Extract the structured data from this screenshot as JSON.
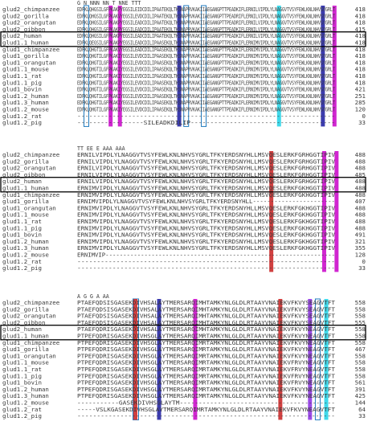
{
  "colors": {
    "text": "#3a3a3a",
    "magenta": "#c800c8",
    "cyan": "#1ed2e6",
    "navy": "#1a1aa0",
    "red": "#c81e1e",
    "violet": "#8a2be2",
    "box_outline": "#1e78be",
    "highlight_box": "#000000"
  },
  "blocks": [
    {
      "annotation": "G N                                         NNN NN                  T NNE   TTT",
      "rows": [
        {
          "name": "glud2_chimpanzee",
          "seq": "EDFKLQHGSILGFPKAKPYEGSILEIDCDILIPAATEKQLTKSNAPRVKAKIIAEGANGPTTPEADKIFLERNILVIPDLYLNAGGVTVSYFEWLKNLNHVSYGRLT",
          "num": "418"
        },
        {
          "name": "glud2_gorilla",
          "seq": "EDFKLQHGSILGFPKAKVYEGSILEVDCDILIPAATEKQLTKSNAPRVKAKIIAEGANGPTTPEADRIFLERNILVIPDLYLNAGGVTVSYFEWLKNLNHVSYGRLT",
          "num": "418"
        },
        {
          "name": "glud2_orangutan",
          "seq": "EDFKLQHGSILGFPKAKPYEGSILEADCDILIPAATEKQLTKSNAPRVKAKIIAEGANGPTTPEADRIFLERNILVIPDLYLNAGGVTVSYFEWLKNLNHVSYGRLT",
          "num": "418"
        },
        {
          "name": "glud2_gibbon",
          "seq": "EDFKLQHGSILGFPKAKPYEGSILEADCDILIPAATEKQLTKSNAPRVKAKIIAEGANGPTTPEADKIFLERNILVIPDLYLNAGGVTVSYFEWLKNLNHVSYGRLT",
          "num": "415"
        },
        {
          "name": "glud2_human",
          "seq": "EDFKLQHGSILGFPKAKPYEGSILEADCDILIPAATEKQLTKSNAPRVKAKIIAEGANGPTTPEADKIFLERNILVIPDLYLNAGGVTVSYFEWLKNLNHVSYGRLT",
          "num": "418",
          "boxed": true
        },
        {
          "name": "glud1.1_human",
          "seq": "EDFKLQEGSILGFPKAKPYEGSILEADCDILIPAASEKQLTKSNAPRVKAKIIAEGANGPTTPEADKIFLERNIMVIPDLYLNAGGVTVSYFEWLKNLNHVSYGRLT",
          "num": "418",
          "boxed": true
        },
        {
          "name": "glud1_chimpanzee",
          "seq": "EDFKLQHGTILGFPKAKVYEGSILEADCDILIPAASEKQLTKSNAPRVKAKIIAEGANGPTTPEADKIFLERNIMVIPDLYLNAGGVTVSYFEWLKNLNHVSYGRLT",
          "num": "418"
        },
        {
          "name": "glud1_gorilla",
          "seq": "EDFKLQHGTILGFPKAKIYEGSILEVDCDILIPAASEKQLTKSNAPRVKAKIIAEGANGPTTPEADKIFLERNIMVIPDLYLNAGGVTVSYFEWLKNLNHVSYGRLT",
          "num": "418"
        },
        {
          "name": "glud1_orangutan",
          "seq": "EDFKLQHGTILGFPKAKIYEGSILEVDCDILIPAASEKQLTKSNAPRVKAKIIAEGANGPTTPEADKIFLERNIMVIPDLYLNAGGVTVSYFEWLKNLNHVSYGRLT",
          "num": "418"
        },
        {
          "name": "glud1.1_mouse",
          "seq": "EDFKLQHGTILGFPKAKIYEGSILEVDCDILIPAASEKQLTKSNAPRVKAKIIAEGANGPTTPEADKIFLERNIMVIPDLYLNAGGVTVSYFEWLKNLNHVSYGRLT",
          "num": "418"
        },
        {
          "name": "glud1.1_rat",
          "seq": "EDFKLQHGTILGFPKAKIYEGSILEVDCDILIPAASEKQLTKSNAPRVKAKIIAEGANGPTTPEADKIFLERNIMVIPDLYLNAGGVTVSYFEWLKNLNHVSYGRLT",
          "num": "418"
        },
        {
          "name": "glud1.1_pig",
          "seq": "EDFKLQHGTILGFPKAKIYEGSILEVDCDILIPAASEKQLTKSNAPRVKAKIIAEGANGPTTPEADKIFLERNIMVIPDLYLNAGGVTVSYFEWLKNLNHVSYGRLT",
          "num": "418"
        },
        {
          "name": "glud1_bovin",
          "seq": "EDFKLQHGTILGFPKAKIYEGSILEVDCDILIPAASEKQLTKSNAPRVKAKIIAEGANGPTTPEADKIFLERNIMVIPDLYLNAGGVTVSYFEWLKNLNHVSYGRLT",
          "num": "421"
        },
        {
          "name": "glud1.2_human",
          "seq": "EDFKLQHGTILGFPKAKIYEGSILEVDCDILIPAASEKQLTKSNAPRVKAKIIAEGANGPTTPEADKIFLERNIMVIPDLYLNAGGVTVSYFEWLKNLNHVSYGRLT",
          "num": "251"
        },
        {
          "name": "glud1.3_human",
          "seq": "EDFKLQHGTILGFPKAKIYEGSILEVDCDILIPAASEKQLTKSNAPRVKAKIIAEGANGPTTPEADKIFLERNIMVIPDLYLNAGGVTVSYFEWLKNLNHVSYGRLT",
          "num": "285"
        },
        {
          "name": "glud1.2_mouse",
          "seq": "EDFKLQHGTILGFPKAKIYEGSILEVDCDILIPAASEKQLTKSNAPRVKAKIIAEGANGPTTPEADKIFLERNIMVIPDLYLNAGGVTVSYFEWLKNLNHVSYGRLT",
          "num": "120"
        },
        {
          "name": "glud1.2_rat",
          "seq": "------------------------------------------------------------------",
          "num": "0"
        },
        {
          "name": "glud1.2_pig",
          "seq": "-----------------SILEADKDILIP-------------------------------------",
          "num": "33"
        }
      ]
    },
    {
      "annotation": "  TT  EE  E     AAA AAA",
      "rows": [
        {
          "name": "glud2_chimpanzee",
          "seq": "ERNILVIPDLYLNAGGVTVSYFEWLKNLNHVSYGRLTFKYERDSNYHLLMSVQESLERKFGRHGGTIPIV",
          "num": "488"
        },
        {
          "name": "glud2_gorilla",
          "seq": "ERNILVIPDLYLNAGGVTVSYFEWLKNLNHVSYGRLTFKYERDSNYHLLMSVQESLERKFGRHGGTIPIV",
          "num": "488"
        },
        {
          "name": "glud2_orangutan",
          "seq": "ERNILVIPDLYLNAGGVTVSYFEWLKNLNHVSYGRLTFKYERDSNYHLLMSVQESLERKFGRHGGTIPIV",
          "num": "488"
        },
        {
          "name": "glud2_gibbon",
          "seq": "ERNILVIPDLYLNAGGVTVSYFEWLKNLNHVSYGRLTFKYERDSNYHLLMSVQESLERKFGRHGGTIPIV",
          "num": "485"
        },
        {
          "name": "glud2_human",
          "seq": "ERNILVIPDLYLNAGGVTVSYFEWLKNLNHVSYGRLTFKYERDSNYHLLMSVQESLERKFGRHGGTIPIV",
          "num": "488",
          "boxed": true
        },
        {
          "name": "glud1.1_human",
          "seq": "ERNIMVIPDLYLNAGGVTVSYFEWLKNLNHVSYGRLTFKYERDSNYHLLMSVQESLERKFGKHGGTIPIV",
          "num": "488",
          "boxed": true
        },
        {
          "name": "glud1_chimpanzee",
          "seq": "ERNIMVIPDLYLNAGGVTVSYFEWLKNLNHVSYGRLTFKYERDSNYHLLMSVQESLERKFGKHGGTIPIV",
          "num": "488"
        },
        {
          "name": "glud1_gorilla",
          "seq": "ERNIMVIPDLYLNAGGVTVSYFEWLKNLNHVSYGRLTFKYERDSNYHLL-----------------------",
          "num": "407"
        },
        {
          "name": "glud1_orangutan",
          "seq": "ERNIMVIPDLYLNAGGVTVSYFEWLKNLNHVSYGRLTFKYERDSNYHLLMSVQESLERKFGKHGGTIPIV",
          "num": "488"
        },
        {
          "name": "glud1.1_mouse",
          "seq": "ERNIMVIPDLYLNAGGVTVSYFEWLKNLNHVSYGRLTFKYERDSNYHLLMSVQESLERKFGKHGGTIPIV",
          "num": "488"
        },
        {
          "name": "glud1.1_rat",
          "seq": "ERNIMVIPDLYLNAGGVTVSYFEWLKNLNHVSYGRLTFKYERDSNYHLLMSVQESLERKFGKHGGTIPIV",
          "num": "488"
        },
        {
          "name": "glud1.1_pig",
          "seq": "ERNIMVIPDLYLNAGGVTVSYFEWLKNLNHVSYGRLTFKYERDSNYHLLMSVQESLERKFGKHGGTIPIV",
          "num": "488"
        },
        {
          "name": "glud1_bovin",
          "seq": "ERNIMVIPDLYLNAGGVTVSYFEWLKNLNHVSYGRLTFKYERDSNYHLLMSVQESLERKFGKHGGTIPIV",
          "num": "491"
        },
        {
          "name": "glud1.2_human",
          "seq": "ERNIMVIPDLYLNAGGVTVSYFEWLKNLNHVSYGRLTFKYERDSNYHLLMSVQESLERKFGKHGGTIPIV",
          "num": "321"
        },
        {
          "name": "glud1.3_human",
          "seq": "ERNIMVIPDLYLNAGGVTVSYFEWLKNLNHVSYGRLTFKYERDSNYHLLMSVQESLERKFGKHGGTIPIV",
          "num": "355"
        },
        {
          "name": "glud1.2_mouse",
          "seq": "ERNIMVIP-----------------------------------------------------------------",
          "num": "128"
        },
        {
          "name": "glud1.2_rat",
          "seq": "------------------------------------------------------------------",
          "num": "0"
        },
        {
          "name": "glud1.2_pig",
          "seq": "------------------------------------------------------------------",
          "num": "33"
        }
      ]
    },
    {
      "annotation": "   A        G   G        A                                AA",
      "rows": [
        {
          "name": "glud2_chimpanzee",
          "seq": "PTAEFQDSISGASEKDIVHSALAYTMERSARQIMHTAMKYNLGLDLRTAAYVNAIEKVFKVYSEAGVTFT",
          "num": "558"
        },
        {
          "name": "glud2_gorilla",
          "seq": "PTAEFQDSISGASEKDIVHSALAYTMERSARQIMHTAMKYNLGLDLRTAAYVNAIEKVFKVYSEAGVTFT",
          "num": "558"
        },
        {
          "name": "glud2_orangutan",
          "seq": "PTAEFQDSISGASEKDIVHSALAYTMERSARQIMHTAMKYNLGLDLRTAAYVNAIEKVFKVYSEAGVTFT",
          "num": "558"
        },
        {
          "name": "glud2_gibbon",
          "seq": "PTAEFQDSISGASEKDIVHSALAYTMERSARQIMHTAMKYNLGLDLRTAAYVNAIEKVFKVYSEAGVTFT",
          "num": "555"
        },
        {
          "name": "glud2_human",
          "seq": "PTAEFQDRISGASEKDIVHSALAYTMERSARQIMHTAMKYNLGLDLRTAAYVNAIEKVFKVYNEAGVTFT",
          "num": "558",
          "boxed": true
        },
        {
          "name": "glud1.1_human",
          "seq": "PTPEFQDRISGASEKDIVHSGLAYTMERSARQIMRTAMKYNLGLDLRTAAYVNAIEKVFKVYNEAGVTFT",
          "num": "558",
          "boxed": true
        },
        {
          "name": "glud1_chimpanzee",
          "seq": "PTPEFQDRISGASEKDIVHSGLAYTMERSARQIMRTAMKYNLGLDLRTAAYVNAIEKVFKVYNEAGVTFT",
          "num": "558"
        },
        {
          "name": "glud1_gorilla",
          "seq": "PTPEFQDRISGASEKDIVHSGLAYTMERSARQIMRTAMKYNLGLDLRTAAYVNAIEKVFKVYNEAGVTFT",
          "num": "467"
        },
        {
          "name": "glud1_orangutan",
          "seq": "PTPEFQDRISGASEKDIVHSGLAYTMERSARQIMRTAMKYNLGLDLRTAAYVNAIEKVFKVYNEAGVTFT",
          "num": "558"
        },
        {
          "name": "glud1.1_mouse",
          "seq": "PTPEFQDRISGASEKDIVHSGLAYTMERSARQIMRTAMKYNLGLDLRTAAYVNAIEKVFRVYNEAGVTFT",
          "num": "558"
        },
        {
          "name": "glud1.1_rat",
          "seq": "PTPEFQDRISGASEKDIVHSGLAYTMERSARQIMRTAMKYNLGLDLRTAAYVNAIEKVFRVYNEAGVTFT",
          "num": "558"
        },
        {
          "name": "glud1.1_pig",
          "seq": "PTPEFQDRISGASEKDIVHSGLAYTMERSARQIMRTAMKYNLGLDLRTAAYVNAIEKVFRVYNEAGVTFT",
          "num": "558"
        },
        {
          "name": "glud1_bovin",
          "seq": "PTPEFQDRISGASEKDIVHSGLAYTMERSARQIMRTAMKYNLGLDLRTAAYVNAIEKVFRVYNEAGVTFT",
          "num": "561"
        },
        {
          "name": "glud1.2_human",
          "seq": "PTPEFQDRISGASEKDIVHSGLAYTMERSARQIMRTAMKYNLGLDLRTAAYVNAIEKVFKVYNEAGVTFT",
          "num": "391"
        },
        {
          "name": "glud1.3_human",
          "seq": "PTPEFQDRISGASEKDIVHSGLAYTMERSARQIMRTAMKYNLGLDLRTAAYVNAIEKVFKVYNEAGVTFT",
          "num": "425"
        },
        {
          "name": "glud1.2_mouse",
          "seq": "-----------GASEKDIVHSGLAYTM-----------------------------------------",
          "num": "144"
        },
        {
          "name": "glud1.2_rat",
          "seq": "-----VSLKGASEKDIVHSGLAYTMERSARQIMRTAMKYNLGLDLRTAAYVNAIEKVFKVYNEAGVTFT",
          "num": "64"
        },
        {
          "name": "glud1.2_pig",
          "seq": "------------------------------------------------------------------",
          "num": "33"
        }
      ]
    }
  ]
}
